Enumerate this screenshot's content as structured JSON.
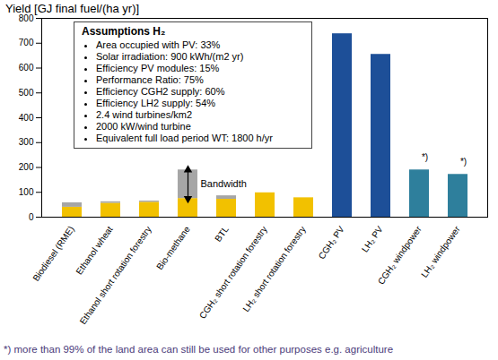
{
  "chart_data": {
    "type": "bar",
    "title": "Yield [GJ final fuel/(ha yr)]",
    "stacked": true,
    "grid": false,
    "categories": [
      "Biodiesel (RME)",
      "Ethanol wheat",
      "Ethanol short rotation forestry",
      "Bio-methane",
      "BTL",
      "CGH₂ short rotation forestry",
      "LH₂ short rotation forestry",
      "CGH₂ PV",
      "LH₂ PV",
      "CGH₂ windpower",
      "LH₂ windpower"
    ],
    "series": [
      {
        "colors": [
          "#f2c100",
          "#f2c100",
          "#f2c100",
          "#f2c100",
          "#f2c100",
          "#f2c100",
          "#f2c100",
          "#1d4f98",
          "#1d4f98",
          "#2e7f9c",
          "#2e7f9c"
        ],
        "values": [
          40,
          56,
          60,
          75,
          72,
          98,
          78,
          738,
          655,
          190,
          172
        ]
      },
      {
        "color": "#a6a6a6",
        "values": [
          18,
          6,
          5,
          115,
          14,
          null,
          null,
          null,
          null,
          null,
          null
        ]
      }
    ],
    "ylim": [
      0,
      800
    ],
    "yticks": [
      0,
      100,
      200,
      300,
      400,
      500,
      600,
      700,
      800
    ],
    "annotations": [
      {
        "text": "Bandwidth",
        "category": "Bio-methane"
      },
      {
        "text": "*)",
        "category": "CGH₂ windpower"
      },
      {
        "text": "*)",
        "category": "LH₂ windpower"
      }
    ],
    "assumptions": {
      "title": "Assumptions H₂",
      "items": [
        "Area occupied with PV: 33%",
        "Solar irradiation: 900 kWh/(m2 yr)",
        "Efficiency PV modules: 15%",
        "Performance Ratio: 75%",
        "Efficiency CGH2 supply: 60%",
        "Efficiency LH2 supply: 54%",
        "2.4 wind turbines/km2",
        "2000 kW/wind turbine",
        "Equivalent full load period WT: 1800 h/yr"
      ]
    },
    "footnote": "*) more than 99% of the land area can still be used for other purposes e.g. agriculture"
  }
}
